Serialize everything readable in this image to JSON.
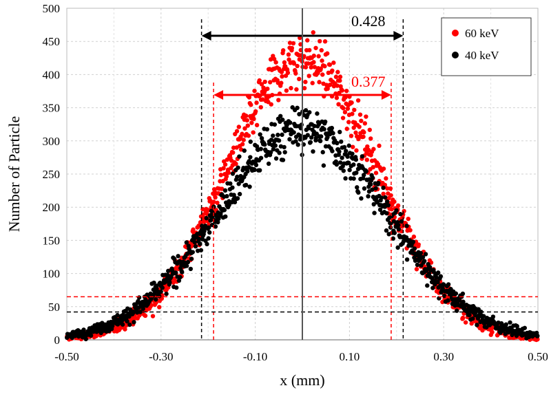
{
  "chart_data": {
    "type": "scatter",
    "title": "",
    "xlabel": "x (mm)",
    "ylabel": "Number of Particle",
    "xlim": [
      -0.5,
      0.5
    ],
    "ylim": [
      0,
      500
    ],
    "xticks": [
      -0.5,
      -0.3,
      -0.1,
      0.1,
      0.3,
      0.5
    ],
    "xtick_labels": [
      "-0.50",
      "-0.30",
      "-0.10",
      "0.10",
      "0.30",
      "0.50"
    ],
    "yticks": [
      0,
      50,
      100,
      150,
      200,
      250,
      300,
      350,
      400,
      450,
      500
    ],
    "ytick_labels": [
      "0",
      "50",
      "100",
      "150",
      "200",
      "250",
      "300",
      "350",
      "400",
      "450",
      "500"
    ],
    "grid": true,
    "legend_position": "top-right",
    "series": [
      {
        "name": "60 keV",
        "color": "#ff0000",
        "peak": 420,
        "sigma": 0.16,
        "half_max_level": 65,
        "width_marker": {
          "label": "0.377",
          "x_left": -0.1885,
          "x_right": 0.1885
        }
      },
      {
        "name": "40 keV",
        "color": "#000000",
        "peak": 315,
        "sigma": 0.18,
        "half_max_level": 42,
        "width_marker": {
          "label": "0.428",
          "x_left": -0.214,
          "x_right": 0.214
        }
      }
    ],
    "center_line_x": 0.0
  }
}
